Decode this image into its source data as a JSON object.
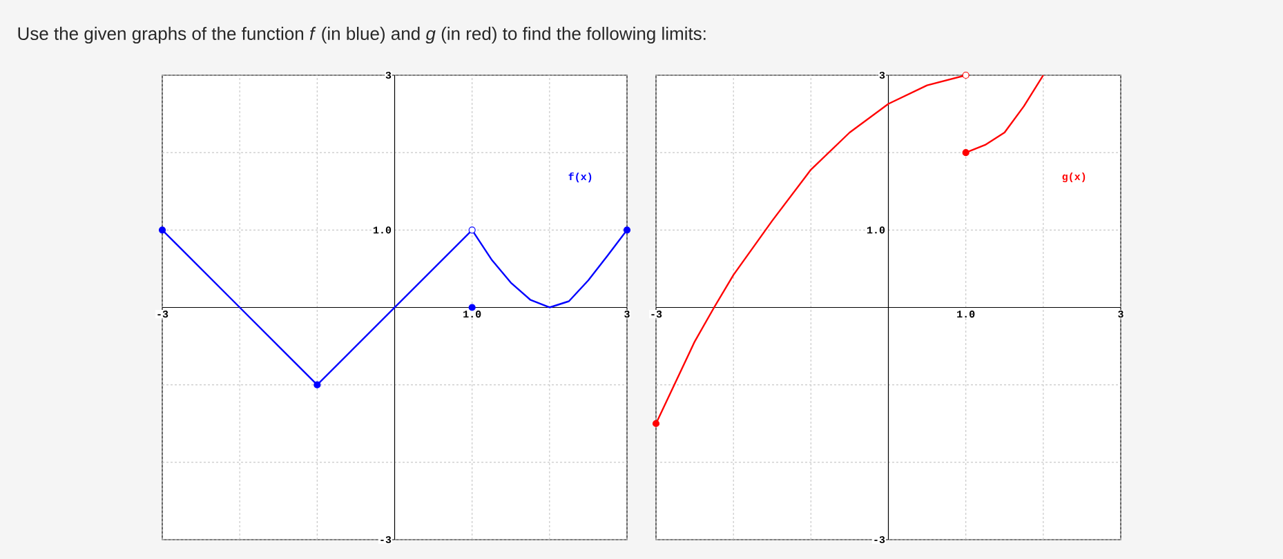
{
  "chart_data": [
    {
      "type": "line",
      "title": "Use the given graphs of the function *f* (in blue) and *g* (in red) to find the following limits:",
      "xlim": [
        -3,
        3
      ],
      "ylim": [
        -3,
        3
      ],
      "xticks": [
        {
          "value": -3,
          "label": "-3"
        },
        {
          "value": -2,
          "label": null
        },
        {
          "value": -1,
          "label": null
        },
        {
          "value": 0,
          "label": null
        },
        {
          "value": 1,
          "label": "1.0"
        },
        {
          "value": 2,
          "label": null
        },
        {
          "value": 3,
          "label": "3"
        }
      ],
      "yticks": [
        {
          "value": -3,
          "label": "-3"
        },
        {
          "value": -2,
          "label": null
        },
        {
          "value": -1,
          "label": null
        },
        {
          "value": 0,
          "label": null
        },
        {
          "value": 1,
          "label": "1.0"
        },
        {
          "value": 2,
          "label": null
        },
        {
          "value": 3,
          "label": "3"
        }
      ],
      "grid": true,
      "series": [
        {
          "name": "f(x)",
          "color": "#0000ff",
          "marker": "none",
          "x": [
            -3,
            -2,
            -1,
            0,
            1,
            1.25,
            1.5,
            1.75,
            2,
            2.25,
            2.5,
            2.75,
            3
          ],
          "values": [
            1,
            0,
            -1,
            0,
            1,
            0.62,
            0.32,
            0.1,
            0,
            0.08,
            0.35,
            0.67,
            1
          ]
        },
        {
          "type": "scatter",
          "color": "#0000ff",
          "marker": "circle",
          "x": [
            -3,
            -1,
            1,
            3
          ],
          "values": [
            1,
            -1,
            0,
            1
          ]
        },
        {
          "type": "scatter",
          "color": "#ffffff",
          "marker": "circle",
          "x": [
            1
          ],
          "values": [
            1
          ]
        }
      ]
    },
    {
      "type": "line",
      "xlim": [
        -3,
        3
      ],
      "ylim": [
        -3,
        3
      ],
      "xticks": [
        {
          "value": -3,
          "label": "-3"
        },
        {
          "value": -2,
          "label": null
        },
        {
          "value": -1,
          "label": null
        },
        {
          "value": 0,
          "label": null
        },
        {
          "value": 1,
          "label": "1.0"
        },
        {
          "value": 2,
          "label": null
        },
        {
          "value": 3,
          "label": "3"
        }
      ],
      "yticks": [
        {
          "value": -3,
          "label": "-3"
        },
        {
          "value": -2,
          "label": null
        },
        {
          "value": -1,
          "label": null
        },
        {
          "value": 0,
          "label": null
        },
        {
          "value": 1,
          "label": "1.0"
        },
        {
          "value": 2,
          "label": null
        },
        {
          "value": 3,
          "label": "3"
        }
      ],
      "grid": true,
      "series": [
        {
          "name": "g(x)",
          "color": "#ff0000",
          "marker": "none",
          "x": [
            -3,
            -2.5,
            -2.25,
            -2,
            -1.5,
            -1,
            -0.5,
            0,
            0.5,
            1
          ],
          "values": [
            -1.5,
            -0.44,
            0,
            0.42,
            1.12,
            1.78,
            2.26,
            2.63,
            2.87,
            3
          ]
        },
        {
          "color": "#ff0000",
          "marker": "none",
          "x": [
            1,
            1.25,
            1.5,
            1.75,
            2
          ],
          "values": [
            2,
            2.1,
            2.26,
            2.6,
            3
          ]
        },
        {
          "type": "scatter",
          "color": "#ff0000",
          "marker": "circle",
          "x": [
            -3,
            1
          ],
          "values": [
            -1.5,
            2
          ]
        },
        {
          "type": "scatter",
          "color": "#ffffff",
          "marker": "circle",
          "x": [
            1
          ],
          "values": [
            3
          ]
        }
      ]
    }
  ]
}
